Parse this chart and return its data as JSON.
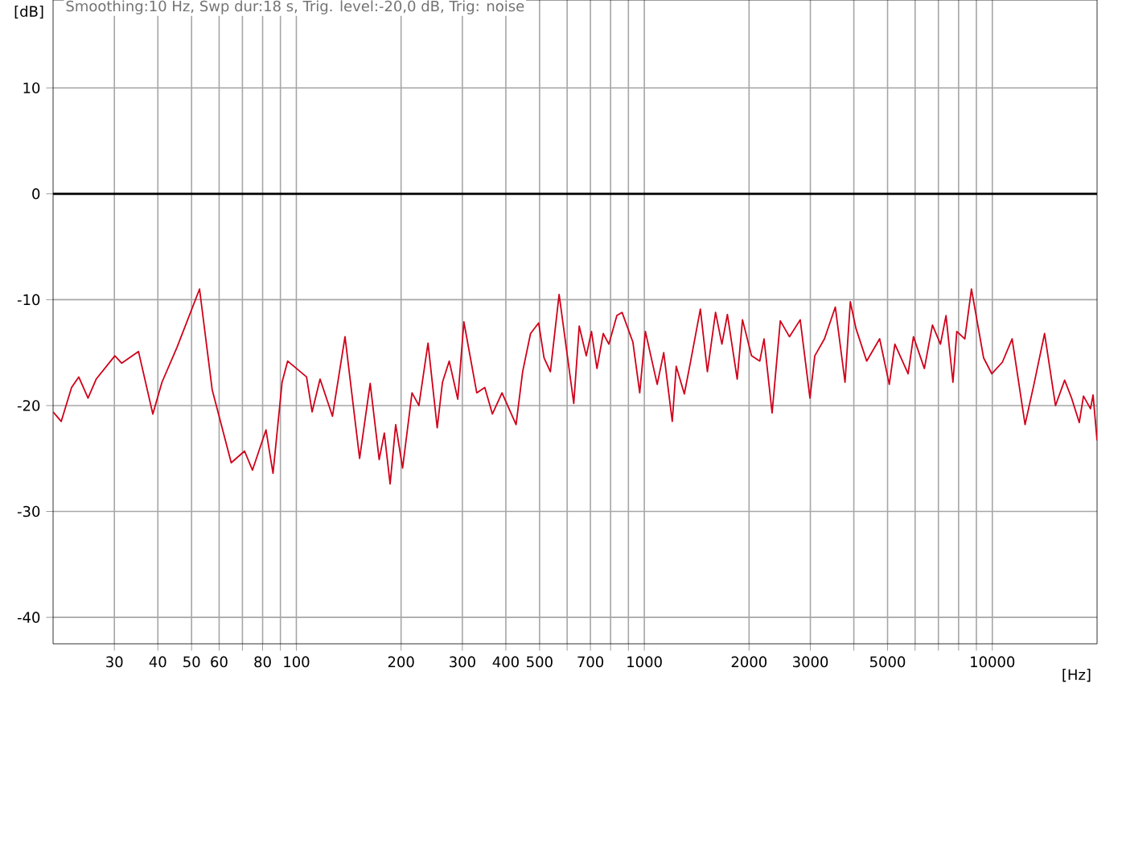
{
  "chart_data": {
    "type": "line",
    "title": "Smoothing:10 Hz, Swp dur:18 s, Trig. level:-20,0 dB, Trig: noise",
    "xlabel": "[Hz]",
    "ylabel": "[dB]",
    "log": "x",
    "xlim": [
      20,
      20000
    ],
    "ylim": [
      -42.5,
      18.3
    ],
    "xticks": [
      30,
      40,
      50,
      60,
      {
        "value": 70,
        "label": null
      },
      80,
      {
        "value": 90,
        "label": null
      },
      100,
      200,
      300,
      400,
      500,
      {
        "value": 600,
        "label": null
      },
      700,
      {
        "value": 800,
        "label": null
      },
      {
        "value": 900,
        "label": null
      },
      1000,
      2000,
      3000,
      {
        "value": 4000,
        "label": null
      },
      5000,
      {
        "value": 6000,
        "label": null
      },
      {
        "value": 7000,
        "label": null
      },
      {
        "value": 8000,
        "label": null
      },
      {
        "value": 9000,
        "label": null
      },
      10000
    ],
    "yticks": [
      -40,
      -30,
      -20,
      -10,
      0,
      10
    ],
    "grid": true,
    "marker": "none",
    "line_style": "solid",
    "ref_lines": [
      {
        "axis": "y",
        "value": 0,
        "color": "#000000"
      }
    ],
    "series": [
      {
        "color": "#d0001a",
        "x": [
          20,
          21.1,
          22.6,
          23.7,
          25.2,
          26.6,
          30.1,
          31.5,
          35.2,
          38.7,
          41.1,
          45.4,
          52.7,
          57.3,
          65,
          71,
          74.8,
          81.8,
          85.7,
          91,
          94.4,
          107,
          111,
          117,
          127,
          138,
          152,
          163,
          173,
          179,
          186,
          193,
          202,
          215,
          225,
          239,
          254,
          263,
          275,
          291,
          303,
          330,
          348,
          366,
          390,
          428,
          447,
          471,
          497,
          515,
          537,
          569,
          627,
          650,
          681,
          705,
          731,
          762,
          791,
          834,
          863,
          927,
          970,
          1007,
          1089,
          1137,
          1203,
          1235,
          1303,
          1359,
          1449,
          1518,
          1602,
          1671,
          1733,
          1849,
          1915,
          2033,
          2147,
          2208,
          2329,
          2459,
          2612,
          2805,
          2992,
          3090,
          3294,
          3539,
          3774,
          3908,
          4055,
          4355,
          4745,
          5058,
          5248,
          5728,
          5934,
          6379,
          6730,
          7096,
          7362,
          7709,
          7907,
          8337,
          8710,
          9441,
          9970,
          10690,
          11400,
          12420,
          13170,
          14130,
          15190,
          16140,
          16900,
          17780,
          18280,
          19150,
          19480,
          20000
        ],
        "values": [
          -20.6,
          -21.5,
          -18.3,
          -17.3,
          -19.3,
          -17.5,
          -15.3,
          -16.0,
          -14.9,
          -20.8,
          -17.8,
          -14.5,
          -9.0,
          -18.5,
          -25.4,
          -24.3,
          -26.1,
          -22.3,
          -26.4,
          -17.8,
          -15.8,
          -17.3,
          -20.6,
          -17.5,
          -21.0,
          -13.5,
          -25.0,
          -17.9,
          -25.1,
          -22.6,
          -27.4,
          -21.8,
          -25.9,
          -18.8,
          -20.0,
          -14.1,
          -22.1,
          -17.8,
          -15.8,
          -19.4,
          -12.1,
          -18.8,
          -18.3,
          -20.8,
          -18.8,
          -21.8,
          -16.8,
          -13.2,
          -12.2,
          -15.5,
          -16.8,
          -9.5,
          -19.8,
          -12.5,
          -15.3,
          -13.0,
          -16.5,
          -13.2,
          -14.2,
          -11.5,
          -11.2,
          -14.0,
          -18.8,
          -13.0,
          -18.0,
          -15.0,
          -21.5,
          -16.3,
          -18.9,
          -15.8,
          -10.9,
          -16.8,
          -11.2,
          -14.2,
          -11.4,
          -17.5,
          -11.9,
          -15.3,
          -15.8,
          -13.7,
          -20.7,
          -12.0,
          -13.5,
          -11.9,
          -19.3,
          -15.3,
          -13.7,
          -10.7,
          -17.8,
          -10.2,
          -12.7,
          -15.8,
          -13.7,
          -18.0,
          -14.2,
          -17.0,
          -13.5,
          -16.5,
          -12.4,
          -14.2,
          -11.5,
          -17.8,
          -13.0,
          -13.7,
          -9.0,
          -15.5,
          -17.0,
          -15.9,
          -13.7,
          -21.8,
          -18.0,
          -13.2,
          -20.0,
          -17.6,
          -19.3,
          -21.6,
          -19.1,
          -20.3,
          -19.0,
          -23.3
        ]
      }
    ]
  }
}
